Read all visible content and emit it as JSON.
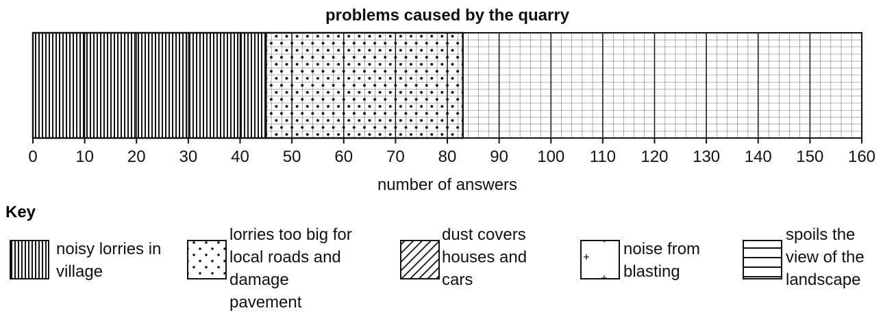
{
  "chart_data": {
    "type": "stacked_bar",
    "orientation": "horizontal",
    "title": "problems caused by the quarry",
    "x_label": "number of answers",
    "legend_title": "Key",
    "series": [
      {
        "name": "noisy lorries in village",
        "pattern": "vertical",
        "values": [
          45
        ]
      },
      {
        "name": "lorries too big for local roads and damage pavement",
        "pattern": "dots",
        "values": [
          38
        ]
      },
      {
        "name": "dust covers houses and cars",
        "pattern": "diagonal",
        "values": [
          null
        ]
      },
      {
        "name": "noise from blasting",
        "pattern": "plus",
        "values": [
          null
        ]
      },
      {
        "name": "spoils the view of the landscape",
        "pattern": "horizontal",
        "values": [
          null
        ]
      }
    ],
    "xlim": [
      0,
      160
    ],
    "xticks": [
      0,
      10,
      20,
      30,
      40,
      50,
      60,
      70,
      80,
      90,
      100,
      110,
      120,
      130,
      140,
      150,
      160
    ],
    "grid": true
  }
}
